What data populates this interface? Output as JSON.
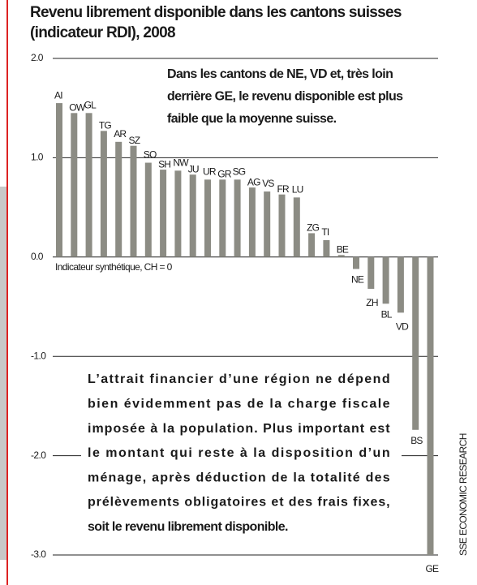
{
  "chart_data": {
    "type": "bar",
    "title": [
      "Revenu librement disponible dans les cantons suisses",
      "(indicateur RDI), 2008"
    ],
    "annotation_top": [
      "Dans les cantons de NE, VD et, très loin",
      "derrière GE, le revenu disponible est plus",
      "faible que la moyenne suisse."
    ],
    "annotation_box": [
      "L’attrait financier d’une région ne dépend",
      "bien évidemment pas de la charge fiscale",
      "imposée à la population. Plus important est",
      "le montant qui reste à la disposition d’un",
      "ménage, après déduction de la totalité des",
      "prélèvements obligatoires et des frais fixes,",
      "soit le revenu librement disponible."
    ],
    "axis_label": "Indicateur synthétique, CH = 0",
    "source": "SSE ECONOMIC RESEARCH",
    "categories": [
      "AI",
      "OW",
      "GL",
      "TG",
      "AR",
      "SZ",
      "SO",
      "SH",
      "NW",
      "JU",
      "UR",
      "GR",
      "SG",
      "AG",
      "VS",
      "FR",
      "LU",
      "ZG",
      "TI",
      "BE",
      "NE",
      "ZH",
      "BL",
      "VD",
      "BS",
      "GE"
    ],
    "values": [
      1.55,
      1.45,
      1.45,
      1.27,
      1.16,
      1.12,
      0.95,
      0.88,
      0.87,
      0.83,
      0.78,
      0.78,
      0.78,
      0.7,
      0.66,
      0.63,
      0.6,
      0.24,
      0.17,
      0.02,
      -0.12,
      -0.32,
      -0.47,
      -0.56,
      -1.74,
      -3.0
    ],
    "color": "#8c8c84",
    "ylim": [
      -3,
      2
    ],
    "yticks": [
      {
        "value": 2,
        "label": "2.0"
      },
      {
        "value": 1,
        "label": "1.0"
      },
      {
        "value": 0,
        "label": "0.0"
      },
      {
        "value": -1,
        "label": "-1.0"
      },
      {
        "value": -2,
        "label": "-2.0"
      },
      {
        "value": -3,
        "label": "-3.0"
      }
    ],
    "grid": true
  }
}
